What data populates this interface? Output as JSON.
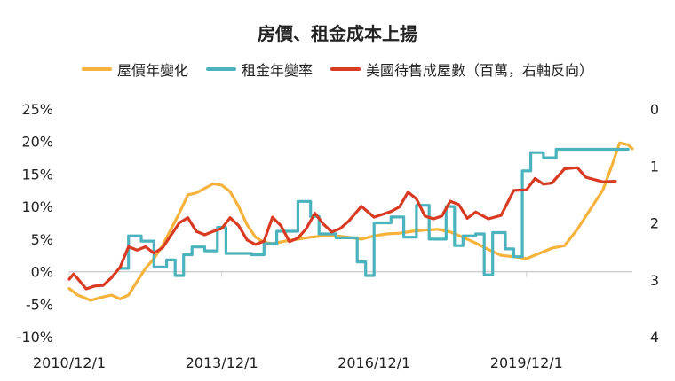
{
  "colors": {
    "house": "#f5b23c",
    "rent": "#4bb3bd",
    "supply": "#d83a22",
    "axis": "#555555"
  },
  "chart_data": {
    "type": "line",
    "title": "房價、租金成本上揚",
    "x_ticks": [
      "2010/12/1",
      "2013/12/1",
      "2016/12/1",
      "2019/12/1"
    ],
    "left_axis": {
      "ticks": [
        "25%",
        "20%",
        "15%",
        "10%",
        "5%",
        "0%",
        "-5%",
        "-10%"
      ],
      "ylim": [
        -10,
        25
      ]
    },
    "right_axis": {
      "ticks": [
        "0",
        "1",
        "2",
        "3",
        "4"
      ],
      "ylim": [
        4,
        0
      ],
      "reversed": true
    },
    "series": [
      {
        "name": "屋價年變化",
        "axis": "left",
        "step": false,
        "points": [
          [
            "2010-12",
            -2.6
          ],
          [
            "2011-02",
            -3.6
          ],
          [
            "2011-05",
            -4.4
          ],
          [
            "2011-08",
            -3.9
          ],
          [
            "2011-10",
            -3.6
          ],
          [
            "2011-12",
            -4.2
          ],
          [
            "2012-02",
            -3.6
          ],
          [
            "2012-04",
            -1.5
          ],
          [
            "2012-06",
            0.5
          ],
          [
            "2012-08",
            2.0
          ],
          [
            "2012-10",
            4.0
          ],
          [
            "2012-12",
            6.5
          ],
          [
            "2013-02",
            9.0
          ],
          [
            "2013-04",
            11.8
          ],
          [
            "2013-06",
            12.1
          ],
          [
            "2013-08",
            12.8
          ],
          [
            "2013-10",
            13.5
          ],
          [
            "2013-12",
            13.3
          ],
          [
            "2014-02",
            12.3
          ],
          [
            "2014-04",
            10.0
          ],
          [
            "2014-06",
            7.2
          ],
          [
            "2014-08",
            5.3
          ],
          [
            "2014-10",
            4.5
          ],
          [
            "2014-12",
            4.3
          ],
          [
            "2015-03",
            4.7
          ],
          [
            "2015-06",
            5.0
          ],
          [
            "2015-09",
            5.3
          ],
          [
            "2015-12",
            5.5
          ],
          [
            "2016-03",
            5.5
          ],
          [
            "2016-06",
            5.3
          ],
          [
            "2016-09",
            5.0
          ],
          [
            "2016-12",
            5.5
          ],
          [
            "2017-03",
            5.8
          ],
          [
            "2017-06",
            5.9
          ],
          [
            "2017-09",
            6.2
          ],
          [
            "2017-12",
            6.4
          ],
          [
            "2018-03",
            6.5
          ],
          [
            "2018-06",
            6.1
          ],
          [
            "2018-09",
            5.3
          ],
          [
            "2018-12",
            4.4
          ],
          [
            "2019-03",
            3.4
          ],
          [
            "2019-06",
            2.5
          ],
          [
            "2019-09",
            2.3
          ],
          [
            "2019-12",
            2.0
          ],
          [
            "2020-03",
            2.8
          ],
          [
            "2020-06",
            3.6
          ],
          [
            "2020-09",
            4.0
          ],
          [
            "2020-12",
            6.5
          ],
          [
            "2021-03",
            9.5
          ],
          [
            "2021-06",
            12.5
          ],
          [
            "2021-08",
            16.0
          ],
          [
            "2021-10",
            19.8
          ],
          [
            "2021-12",
            19.5
          ],
          [
            "2022-01",
            18.9
          ]
        ]
      },
      {
        "name": "租金年變率",
        "axis": "left",
        "step": true,
        "points": [
          [
            "2011-12",
            0.5
          ],
          [
            "2012-02",
            5.5
          ],
          [
            "2012-05",
            4.7
          ],
          [
            "2012-08",
            0.7
          ],
          [
            "2012-11",
            1.8
          ],
          [
            "2013-01",
            -0.6
          ],
          [
            "2013-03",
            2.6
          ],
          [
            "2013-05",
            3.8
          ],
          [
            "2013-08",
            3.2
          ],
          [
            "2013-11",
            6.8
          ],
          [
            "2014-01",
            2.8
          ],
          [
            "2014-07",
            2.6
          ],
          [
            "2014-10",
            4.3
          ],
          [
            "2015-01",
            6.2
          ],
          [
            "2015-06",
            10.8
          ],
          [
            "2015-09",
            8.5
          ],
          [
            "2015-11",
            5.8
          ],
          [
            "2016-03",
            5.2
          ],
          [
            "2016-08",
            1.5
          ],
          [
            "2016-10",
            -0.6
          ],
          [
            "2016-12",
            7.5
          ],
          [
            "2017-04",
            8.4
          ],
          [
            "2017-07",
            5.3
          ],
          [
            "2017-10",
            10.2
          ],
          [
            "2018-01",
            5.0
          ],
          [
            "2018-05",
            10.0
          ],
          [
            "2018-07",
            4.0
          ],
          [
            "2018-09",
            5.5
          ],
          [
            "2018-12",
            5.8
          ],
          [
            "2019-02",
            -0.5
          ],
          [
            "2019-04",
            6.0
          ],
          [
            "2019-07",
            3.5
          ],
          [
            "2019-09",
            2.3
          ],
          [
            "2019-11",
            15.5
          ],
          [
            "2020-01",
            18.3
          ],
          [
            "2020-04",
            17.5
          ],
          [
            "2020-07",
            18.8
          ],
          [
            "2021-12",
            18.8
          ]
        ]
      },
      {
        "name": "美國待售成屋數（百萬，右軸反向）",
        "axis": "right",
        "step": false,
        "points": [
          [
            "2010-12",
            2.99
          ],
          [
            "2011-01",
            2.9
          ],
          [
            "2011-02",
            2.98
          ],
          [
            "2011-04",
            3.16
          ],
          [
            "2011-06",
            3.11
          ],
          [
            "2011-08",
            3.1
          ],
          [
            "2011-10",
            2.96
          ],
          [
            "2011-12",
            2.78
          ],
          [
            "2012-02",
            2.42
          ],
          [
            "2012-04",
            2.48
          ],
          [
            "2012-06",
            2.42
          ],
          [
            "2012-08",
            2.53
          ],
          [
            "2012-10",
            2.44
          ],
          [
            "2012-12",
            2.22
          ],
          [
            "2013-02",
            2.0
          ],
          [
            "2013-04",
            1.91
          ],
          [
            "2013-06",
            2.15
          ],
          [
            "2013-08",
            2.21
          ],
          [
            "2013-10",
            2.15
          ],
          [
            "2013-12",
            2.1
          ],
          [
            "2014-02",
            1.91
          ],
          [
            "2014-04",
            2.05
          ],
          [
            "2014-06",
            2.3
          ],
          [
            "2014-08",
            2.38
          ],
          [
            "2014-10",
            2.32
          ],
          [
            "2014-12",
            1.9
          ],
          [
            "2015-02",
            2.05
          ],
          [
            "2015-04",
            2.33
          ],
          [
            "2015-06",
            2.27
          ],
          [
            "2015-08",
            2.1
          ],
          [
            "2015-10",
            1.83
          ],
          [
            "2015-12",
            2.02
          ],
          [
            "2016-02",
            2.16
          ],
          [
            "2016-04",
            2.1
          ],
          [
            "2016-06",
            1.97
          ],
          [
            "2016-09",
            1.71
          ],
          [
            "2016-12",
            1.9
          ],
          [
            "2017-02",
            1.85
          ],
          [
            "2017-04",
            1.8
          ],
          [
            "2017-06",
            1.72
          ],
          [
            "2017-08",
            1.46
          ],
          [
            "2017-10",
            1.58
          ],
          [
            "2017-12",
            1.88
          ],
          [
            "2018-02",
            1.93
          ],
          [
            "2018-04",
            1.88
          ],
          [
            "2018-06",
            1.62
          ],
          [
            "2018-08",
            1.68
          ],
          [
            "2018-10",
            1.92
          ],
          [
            "2018-12",
            1.81
          ],
          [
            "2019-03",
            1.93
          ],
          [
            "2019-06",
            1.87
          ],
          [
            "2019-09",
            1.43
          ],
          [
            "2019-12",
            1.42
          ],
          [
            "2020-02",
            1.22
          ],
          [
            "2020-04",
            1.32
          ],
          [
            "2020-06",
            1.3
          ],
          [
            "2020-09",
            1.05
          ],
          [
            "2020-12",
            1.03
          ],
          [
            "2021-02",
            1.2
          ],
          [
            "2021-04",
            1.24
          ],
          [
            "2021-06",
            1.28
          ],
          [
            "2021-09",
            1.27
          ]
        ]
      }
    ],
    "grid": false,
    "legend": "top"
  }
}
